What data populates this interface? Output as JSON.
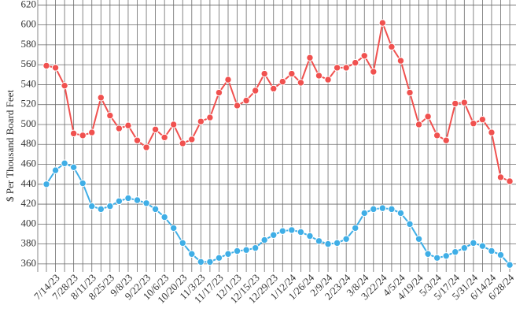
{
  "chart_data": {
    "type": "line",
    "y_label": "$ Per Thousand Board Feet",
    "categories": [
      null,
      "7/14/23",
      null,
      "7/28/23",
      null,
      "8/11/23",
      null,
      "8/25/23",
      null,
      "9/8/23",
      null,
      "9/22/23",
      null,
      "10/6/23",
      null,
      "10/20/23",
      null,
      "11/3/23",
      null,
      "11/17/23",
      null,
      "12/1/23",
      null,
      "12/15/23",
      null,
      "12/29/23",
      null,
      "1/12/24",
      null,
      "1/26/24",
      null,
      "2/9/24",
      null,
      "2/23/24",
      null,
      "3/8/24",
      null,
      "3/22/24",
      null,
      "4/5/24",
      null,
      "4/19/24",
      null,
      "5/3/24",
      null,
      "5/17/24",
      null,
      "5/31/24",
      null,
      "6/14/24",
      null,
      "6/28/24"
    ],
    "series": [
      {
        "color": "#f0514f",
        "values": [
          559,
          557,
          539,
          491,
          489,
          492,
          527,
          509,
          496,
          499,
          484,
          477,
          495,
          487,
          500,
          481,
          485,
          503,
          507,
          532,
          545,
          519,
          524,
          534,
          551,
          536,
          543,
          551,
          542,
          567,
          549,
          545,
          557,
          557,
          562,
          569,
          553,
          602,
          578,
          564,
          532,
          500,
          508,
          489,
          484,
          521,
          522,
          501,
          505,
          492,
          447,
          443
        ]
      },
      {
        "color": "#3faee6",
        "values": [
          440,
          454,
          461,
          457,
          441,
          418,
          415,
          418,
          423,
          426,
          424,
          421,
          415,
          407,
          396,
          381,
          370,
          362,
          362,
          366,
          370,
          373,
          374,
          376,
          384,
          389,
          393,
          394,
          392,
          388,
          383,
          380,
          381,
          385,
          396,
          411,
          415,
          416,
          415,
          411,
          400,
          385,
          370,
          366,
          368,
          372,
          376,
          381,
          378,
          373,
          369,
          359
        ]
      }
    ],
    "ylim": [
      352,
      625
    ],
    "yticks": [
      360,
      380,
      400,
      420,
      440,
      460,
      480,
      500,
      520,
      540,
      560,
      580,
      600,
      620
    ],
    "grid": true
  }
}
